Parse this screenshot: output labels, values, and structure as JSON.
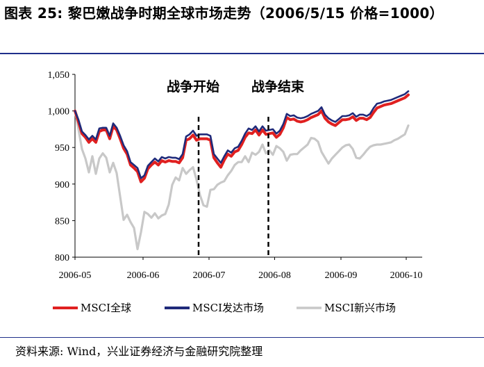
{
  "title": "图表 25:  黎巴嫩战争时期全球市场走势（2006/5/15 价格=1000）",
  "source": "资料来源:  Wind，兴业证券经济与金融研究院整理",
  "chart_data": {
    "type": "line",
    "ylim": [
      800,
      1050
    ],
    "yticks": [
      "800",
      "850",
      "900",
      "950",
      "1,000",
      "1,050"
    ],
    "ytick_values": [
      800,
      850,
      900,
      950,
      1000,
      1050
    ],
    "xticks": [
      "2006-05",
      "2006-06",
      "2006-07",
      "2006-08",
      "2006-09",
      "2006-10"
    ],
    "x_range_index": [
      0,
      100
    ],
    "xtick_positions": [
      0,
      19.6,
      38.6,
      57.5,
      76.6,
      95.4
    ],
    "annotations": [
      {
        "text": "战争开始",
        "x_index": 35.6
      },
      {
        "text": "战争结束",
        "x_index": 55.7
      }
    ],
    "legend_position": "bottom",
    "series": [
      {
        "name": "MSCI全球",
        "color": "#e02020",
        "x": [
          0,
          1,
          2,
          3,
          4,
          5,
          6,
          7,
          8,
          9,
          10,
          11,
          12,
          13,
          14,
          15,
          16,
          17,
          18,
          19,
          20,
          21,
          22,
          23,
          24,
          25,
          26,
          27,
          28,
          29,
          30,
          31,
          32,
          33,
          34,
          35,
          36,
          37,
          38,
          39,
          40,
          41,
          42,
          43,
          44,
          45,
          46,
          47,
          48,
          49,
          50,
          51,
          52,
          53,
          54,
          55,
          56,
          57,
          58,
          59,
          60,
          61,
          62,
          63,
          64,
          65,
          66,
          67,
          68,
          69,
          70,
          71,
          72,
          73,
          74,
          75,
          76,
          77,
          78,
          79,
          80,
          81,
          82,
          83,
          84,
          85,
          86,
          87,
          88,
          89,
          90,
          91,
          92,
          93,
          94,
          95,
          96
        ],
        "values": [
          1000,
          985,
          969,
          964,
          957,
          962,
          957,
          972,
          974,
          974,
          962,
          979,
          974,
          962,
          949,
          941,
          926,
          922,
          917,
          903,
          908,
          921,
          926,
          930,
          926,
          932,
          930,
          932,
          931,
          931,
          929,
          936,
          960,
          962,
          967,
          960,
          962,
          962,
          962,
          960,
          936,
          929,
          923,
          933,
          941,
          938,
          944,
          946,
          954,
          964,
          970,
          969,
          974,
          967,
          974,
          968,
          969,
          970,
          964,
          968,
          977,
          991,
          988,
          989,
          986,
          985,
          986,
          988,
          991,
          993,
          995,
          1000,
          990,
          985,
          982,
          980,
          984,
          988,
          988,
          989,
          992,
          987,
          990,
          990,
          988,
          991,
          998,
          1004,
          1006,
          1008,
          1009,
          1010,
          1012,
          1014,
          1016,
          1018,
          1022
        ]
      },
      {
        "name": "MSCI发达市场",
        "color": "#1f2a7a",
        "x": [
          0,
          1,
          2,
          3,
          4,
          5,
          6,
          7,
          8,
          9,
          10,
          11,
          12,
          13,
          14,
          15,
          16,
          17,
          18,
          19,
          20,
          21,
          22,
          23,
          24,
          25,
          26,
          27,
          28,
          29,
          30,
          31,
          32,
          33,
          34,
          35,
          36,
          37,
          38,
          39,
          40,
          41,
          42,
          43,
          44,
          45,
          46,
          47,
          48,
          49,
          50,
          51,
          52,
          53,
          54,
          55,
          56,
          57,
          58,
          59,
          60,
          61,
          62,
          63,
          64,
          65,
          66,
          67,
          68,
          69,
          70,
          71,
          72,
          73,
          74,
          75,
          76,
          77,
          78,
          79,
          80,
          81,
          82,
          83,
          84,
          85,
          86,
          87,
          88,
          89,
          90,
          91,
          92,
          93,
          94,
          95,
          96
        ],
        "values": [
          1000,
          988,
          972,
          967,
          961,
          966,
          961,
          976,
          977,
          977,
          966,
          983,
          977,
          966,
          953,
          945,
          930,
          926,
          922,
          908,
          912,
          925,
          930,
          935,
          931,
          937,
          935,
          937,
          936,
          936,
          934,
          941,
          965,
          968,
          973,
          966,
          968,
          968,
          968,
          966,
          941,
          935,
          929,
          938,
          946,
          943,
          949,
          951,
          959,
          969,
          976,
          974,
          979,
          972,
          979,
          973,
          974,
          975,
          969,
          973,
          982,
          996,
          993,
          994,
          991,
          990,
          991,
          993,
          996,
          998,
          1000,
          1005,
          995,
          990,
          987,
          985,
          989,
          993,
          993,
          994,
          997,
          992,
          995,
          995,
          993,
          996,
          1004,
          1010,
          1011,
          1013,
          1014,
          1015,
          1017,
          1019,
          1021,
          1023,
          1027
        ]
      },
      {
        "name": "MSCI新兴市场",
        "color": "#c8c8c8",
        "x": [
          0,
          1,
          2,
          3,
          4,
          5,
          6,
          7,
          8,
          9,
          10,
          11,
          12,
          13,
          14,
          15,
          16,
          17,
          18,
          19,
          20,
          21,
          22,
          23,
          24,
          25,
          26,
          27,
          28,
          29,
          30,
          31,
          32,
          33,
          34,
          35,
          36,
          37,
          38,
          39,
          40,
          41,
          42,
          43,
          44,
          45,
          46,
          47,
          48,
          49,
          50,
          51,
          52,
          53,
          54,
          55,
          56,
          57,
          58,
          59,
          60,
          61,
          62,
          63,
          64,
          65,
          66,
          67,
          68,
          69,
          70,
          71,
          72,
          73,
          74,
          75,
          76,
          77,
          78,
          79,
          80,
          81,
          82,
          83,
          84,
          85,
          86,
          87,
          88,
          89,
          90,
          91,
          92,
          93,
          94,
          95,
          96
        ],
        "values": [
          1000,
          975,
          948,
          935,
          916,
          938,
          914,
          935,
          942,
          936,
          916,
          929,
          915,
          883,
          851,
          858,
          848,
          840,
          811,
          834,
          862,
          859,
          854,
          860,
          853,
          857,
          859,
          872,
          899,
          909,
          905,
          922,
          914,
          919,
          923,
          906,
          885,
          871,
          869,
          892,
          893,
          899,
          902,
          904,
          912,
          918,
          926,
          930,
          930,
          938,
          930,
          943,
          940,
          944,
          954,
          942,
          946,
          940,
          952,
          949,
          944,
          932,
          940,
          941,
          941,
          946,
          950,
          954,
          963,
          962,
          958,
          944,
          936,
          928,
          935,
          940,
          945,
          950,
          953,
          954,
          948,
          936,
          935,
          940,
          946,
          951,
          953,
          954,
          954,
          955,
          956,
          957,
          960,
          962,
          965,
          968,
          980
        ]
      }
    ]
  }
}
